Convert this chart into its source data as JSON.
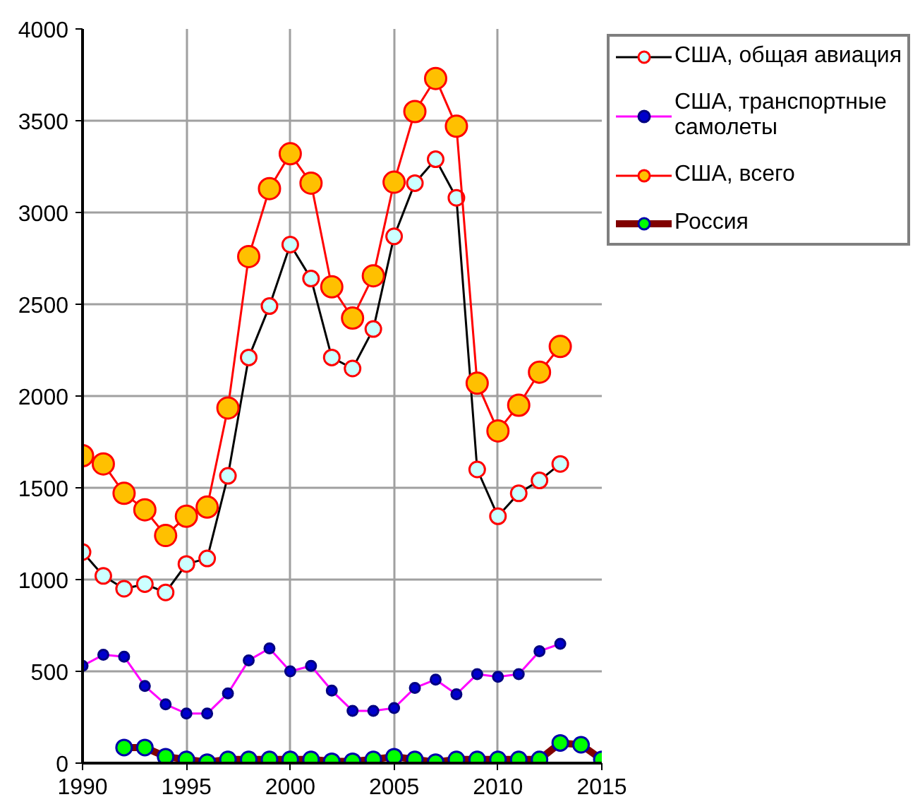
{
  "chart_data": {
    "type": "line",
    "x": [
      1990,
      1991,
      1992,
      1993,
      1994,
      1995,
      1996,
      1997,
      1998,
      1999,
      2000,
      2001,
      2002,
      2003,
      2004,
      2005,
      2006,
      2007,
      2008,
      2009,
      2010,
      2011,
      2012,
      2013
    ],
    "series": [
      {
        "name": "США, общая авиация",
        "color": "#000000",
        "values": [
          1150,
          1020,
          950,
          975,
          930,
          1085,
          1115,
          1565,
          2210,
          2490,
          2825,
          2640,
          2210,
          2150,
          2365,
          2870,
          3160,
          3290,
          3080,
          1600,
          1345,
          1470,
          1540,
          1630
        ]
      },
      {
        "name": "США, транспортные самолеты",
        "color": "#ff00ff",
        "values": [
          530,
          590,
          580,
          420,
          320,
          270,
          270,
          380,
          560,
          625,
          500,
          530,
          395,
          285,
          285,
          300,
          410,
          455,
          375,
          485,
          470,
          485,
          610,
          650
        ]
      },
      {
        "name": "США, всего",
        "color": "#ff0000",
        "values": [
          1675,
          1630,
          1470,
          1380,
          1240,
          1345,
          1395,
          1935,
          2760,
          3130,
          3320,
          3160,
          2595,
          2425,
          2655,
          3165,
          3550,
          3730,
          3470,
          2070,
          1810,
          1950,
          2130,
          2270
        ]
      },
      {
        "name": "Россия",
        "color": "#800000",
        "x": [
          1992,
          1993,
          1994,
          1995,
          1996,
          1997,
          1998,
          1999,
          2000,
          2001,
          2002,
          2003,
          2004,
          2005,
          2006,
          2007,
          2008,
          2009,
          2010,
          2011,
          2012,
          2013,
          2014,
          2015
        ],
        "values": [
          85,
          85,
          35,
          20,
          5,
          20,
          20,
          20,
          20,
          20,
          10,
          10,
          20,
          35,
          20,
          5,
          20,
          20,
          20,
          20,
          20,
          110,
          100,
          20
        ]
      }
    ],
    "xlim": [
      1990,
      2015
    ],
    "xticks": [
      1990,
      1995,
      2000,
      2005,
      2010,
      2015
    ],
    "ylim": [
      0,
      4000
    ],
    "yticks": [
      0,
      500,
      1000,
      1500,
      2000,
      2500,
      3000,
      3500,
      4000
    ],
    "grid": true,
    "legend": "top right",
    "marker": "circle"
  }
}
